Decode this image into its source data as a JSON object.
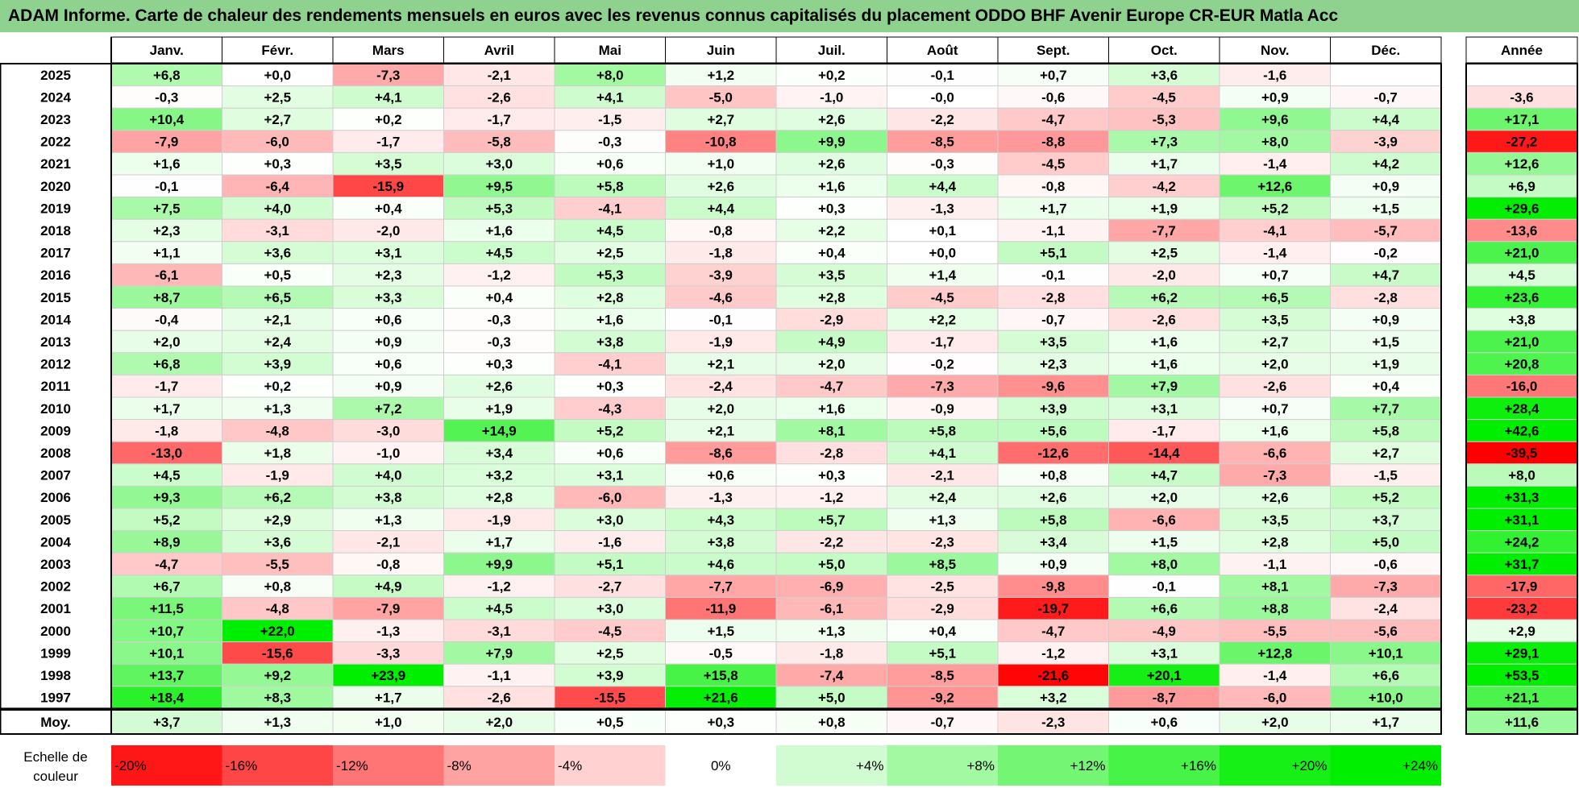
{
  "title": "ADAM Informe. Carte de chaleur des rendements mensuels en euros avec les revenus connus capitalisés du placement ODDO BHF Avenir Europe CR-EUR Matla Acc",
  "chart_data": {
    "type": "heatmap",
    "months": [
      "Janv.",
      "Févr.",
      "Mars",
      "Avril",
      "Mai",
      "Juin",
      "Juil.",
      "Août",
      "Sept.",
      "Oct.",
      "Nov.",
      "Déc."
    ],
    "year_header": "Année",
    "avg_label": "Moy.",
    "rows": [
      {
        "year": "2025",
        "values": [
          "+6,8",
          "+0,0",
          "-7,3",
          "-2,1",
          "+8,0",
          "+1,2",
          "+0,2",
          "-0,1",
          "+0,7",
          "+3,6",
          "-1,6",
          ""
        ],
        "annual": ""
      },
      {
        "year": "2024",
        "values": [
          "-0,3",
          "+2,5",
          "+4,1",
          "-2,6",
          "+4,1",
          "-5,0",
          "-1,0",
          "-0,0",
          "-0,6",
          "-4,5",
          "+0,9",
          "-0,7"
        ],
        "annual": "-3,6"
      },
      {
        "year": "2023",
        "values": [
          "+10,4",
          "+2,7",
          "+0,2",
          "-1,7",
          "-1,5",
          "+2,7",
          "+2,6",
          "-2,2",
          "-4,7",
          "-5,3",
          "+9,6",
          "+4,4"
        ],
        "annual": "+17,1"
      },
      {
        "year": "2022",
        "values": [
          "-7,9",
          "-6,0",
          "-1,7",
          "-5,8",
          "-0,3",
          "-10,8",
          "+9,9",
          "-8,5",
          "-8,8",
          "+7,3",
          "+8,0",
          "-3,9"
        ],
        "annual": "-27,2"
      },
      {
        "year": "2021",
        "values": [
          "+1,6",
          "+0,3",
          "+3,5",
          "+3,0",
          "+0,6",
          "+1,0",
          "+2,6",
          "-0,3",
          "-4,5",
          "+1,7",
          "-1,4",
          "+4,2"
        ],
        "annual": "+12,6"
      },
      {
        "year": "2020",
        "values": [
          "-0,1",
          "-6,4",
          "-15,9",
          "+9,5",
          "+5,8",
          "+2,6",
          "+1,6",
          "+4,4",
          "-0,8",
          "-4,2",
          "+12,6",
          "+0,9"
        ],
        "annual": "+6,9"
      },
      {
        "year": "2019",
        "values": [
          "+7,5",
          "+4,0",
          "+0,4",
          "+5,3",
          "-4,1",
          "+4,4",
          "+0,3",
          "-1,3",
          "+1,7",
          "+1,9",
          "+5,2",
          "+1,5"
        ],
        "annual": "+29,6"
      },
      {
        "year": "2018",
        "values": [
          "+2,3",
          "-3,1",
          "-2,0",
          "+1,6",
          "+4,5",
          "-0,8",
          "+2,2",
          "+0,1",
          "-1,1",
          "-7,7",
          "-4,1",
          "-5,7"
        ],
        "annual": "-13,6"
      },
      {
        "year": "2017",
        "values": [
          "+1,1",
          "+3,6",
          "+3,1",
          "+4,5",
          "+2,5",
          "-1,8",
          "+0,4",
          "+0,0",
          "+5,1",
          "+2,5",
          "-1,4",
          "-0,2"
        ],
        "annual": "+21,0"
      },
      {
        "year": "2016",
        "values": [
          "-6,1",
          "+0,5",
          "+2,3",
          "-1,2",
          "+5,3",
          "-3,9",
          "+3,5",
          "+1,4",
          "-0,1",
          "-2,0",
          "+0,7",
          "+4,7"
        ],
        "annual": "+4,5"
      },
      {
        "year": "2015",
        "values": [
          "+8,7",
          "+6,5",
          "+3,3",
          "+0,4",
          "+2,8",
          "-4,6",
          "+2,8",
          "-4,5",
          "-2,8",
          "+6,2",
          "+6,5",
          "-2,8"
        ],
        "annual": "+23,6"
      },
      {
        "year": "2014",
        "values": [
          "-0,4",
          "+2,1",
          "+0,6",
          "-0,3",
          "+1,6",
          "-0,1",
          "-2,9",
          "+2,2",
          "-0,7",
          "-2,6",
          "+3,5",
          "+0,9"
        ],
        "annual": "+3,8"
      },
      {
        "year": "2013",
        "values": [
          "+2,0",
          "+2,4",
          "+0,9",
          "-0,3",
          "+3,8",
          "-1,9",
          "+4,9",
          "-1,7",
          "+3,5",
          "+1,6",
          "+2,7",
          "+1,5"
        ],
        "annual": "+21,0"
      },
      {
        "year": "2012",
        "values": [
          "+6,8",
          "+3,9",
          "+0,6",
          "+0,3",
          "-4,1",
          "+2,1",
          "+2,0",
          "-0,2",
          "+2,3",
          "+1,6",
          "+2,0",
          "+1,9"
        ],
        "annual": "+20,8"
      },
      {
        "year": "2011",
        "values": [
          "-1,7",
          "+0,2",
          "+0,9",
          "+2,6",
          "+0,3",
          "-2,4",
          "-4,7",
          "-7,3",
          "-9,6",
          "+7,9",
          "-2,6",
          "+0,4"
        ],
        "annual": "-16,0"
      },
      {
        "year": "2010",
        "values": [
          "+1,7",
          "+1,3",
          "+7,2",
          "+1,9",
          "-4,3",
          "+2,0",
          "+1,6",
          "-0,9",
          "+3,9",
          "+3,1",
          "+0,7",
          "+7,7"
        ],
        "annual": "+28,4"
      },
      {
        "year": "2009",
        "values": [
          "-1,8",
          "-4,8",
          "-3,0",
          "+14,9",
          "+5,2",
          "+2,1",
          "+8,1",
          "+5,8",
          "+5,6",
          "-1,7",
          "+1,6",
          "+5,8"
        ],
        "annual": "+42,6"
      },
      {
        "year": "2008",
        "values": [
          "-13,0",
          "+1,8",
          "-1,0",
          "+3,4",
          "+0,6",
          "-8,6",
          "-2,8",
          "+4,1",
          "-12,6",
          "-14,4",
          "-6,6",
          "+2,7"
        ],
        "annual": "-39,5"
      },
      {
        "year": "2007",
        "values": [
          "+4,5",
          "-1,9",
          "+4,0",
          "+3,2",
          "+3,1",
          "+0,6",
          "+0,3",
          "-2,1",
          "+0,8",
          "+4,7",
          "-7,3",
          "-1,5"
        ],
        "annual": "+8,0"
      },
      {
        "year": "2006",
        "values": [
          "+9,3",
          "+6,2",
          "+3,8",
          "+2,8",
          "-6,0",
          "-1,3",
          "-1,2",
          "+2,4",
          "+2,6",
          "+2,0",
          "+2,6",
          "+5,2"
        ],
        "annual": "+31,3"
      },
      {
        "year": "2005",
        "values": [
          "+5,2",
          "+2,9",
          "+1,3",
          "-1,9",
          "+3,0",
          "+4,3",
          "+5,7",
          "+1,3",
          "+5,8",
          "-6,6",
          "+3,5",
          "+3,7"
        ],
        "annual": "+31,1"
      },
      {
        "year": "2004",
        "values": [
          "+8,9",
          "+3,6",
          "-2,1",
          "+1,7",
          "-1,6",
          "+3,8",
          "-2,2",
          "-2,3",
          "+3,4",
          "+1,5",
          "+2,8",
          "+5,0"
        ],
        "annual": "+24,2"
      },
      {
        "year": "2003",
        "values": [
          "-4,7",
          "-5,5",
          "-0,8",
          "+9,9",
          "+5,1",
          "+4,6",
          "+5,0",
          "+8,5",
          "+0,9",
          "+8,0",
          "-1,1",
          "-0,6"
        ],
        "annual": "+31,7"
      },
      {
        "year": "2002",
        "values": [
          "+6,7",
          "+0,8",
          "+4,9",
          "-1,2",
          "-2,7",
          "-7,7",
          "-6,9",
          "-2,5",
          "-9,8",
          "-0,1",
          "+8,1",
          "-7,3"
        ],
        "annual": "-17,9"
      },
      {
        "year": "2001",
        "values": [
          "+11,5",
          "-4,8",
          "-7,9",
          "+4,5",
          "+3,0",
          "-11,9",
          "-6,1",
          "-2,9",
          "-19,7",
          "+6,6",
          "+8,8",
          "-2,4"
        ],
        "annual": "-23,2"
      },
      {
        "year": "2000",
        "values": [
          "+10,7",
          "+22,0",
          "-1,3",
          "-3,1",
          "-4,5",
          "+1,5",
          "+1,3",
          "+0,4",
          "-4,7",
          "-4,9",
          "-5,5",
          "-5,6"
        ],
        "annual": "+2,9"
      },
      {
        "year": "1999",
        "values": [
          "+10,1",
          "-15,6",
          "-3,3",
          "+7,9",
          "+2,5",
          "-0,5",
          "-1,8",
          "+5,1",
          "-1,2",
          "+3,1",
          "+12,8",
          "+10,1"
        ],
        "annual": "+29,1"
      },
      {
        "year": "1998",
        "values": [
          "+13,7",
          "+9,2",
          "+23,9",
          "-1,1",
          "+3,9",
          "+15,8",
          "-7,4",
          "-8,5",
          "-21,6",
          "+20,1",
          "-1,4",
          "+6,6"
        ],
        "annual": "+53,5"
      },
      {
        "year": "1997",
        "values": [
          "+18,4",
          "+8,3",
          "+1,7",
          "-2,6",
          "-15,5",
          "+21,6",
          "+5,0",
          "-9,2",
          "+3,2",
          "-8,7",
          "-6,0",
          "+10,0"
        ],
        "annual": "+21,1"
      }
    ],
    "averages": [
      "+3,7",
      "+1,3",
      "+1,0",
      "+2,0",
      "+0,5",
      "+0,3",
      "+0,8",
      "-0,7",
      "-2,3",
      "+0,6",
      "+2,0",
      "+1,7"
    ],
    "average_annual": "+11,6",
    "scale_label": [
      "Echelle de",
      "couleur"
    ],
    "scale": [
      "-20%",
      "-16%",
      "-12%",
      "-8%",
      "-4%",
      "0%",
      "+4%",
      "+8%",
      "+12%",
      "+16%",
      "+20%",
      "+24%"
    ],
    "scale_values": [
      -20,
      -16,
      -12,
      -8,
      -4,
      0,
      4,
      8,
      12,
      16,
      20,
      24
    ],
    "colors": {
      "negative_max": "#ff0000",
      "neutral": "#ffffff",
      "positive_max": "#00ee00",
      "title_bg": "#8fd18f"
    }
  }
}
